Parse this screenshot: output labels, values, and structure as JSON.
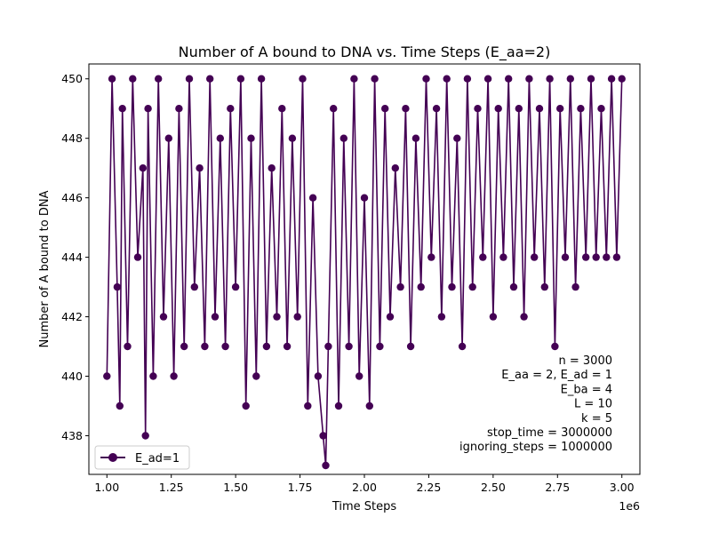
{
  "chart_data": {
    "type": "line",
    "title": "Number of A bound to DNA vs. Time Steps (E_aa=2)",
    "xlabel": "Time Steps",
    "ylabel": "Number of A bound to DNA",
    "x_offset_label": "1e6",
    "xlim": [
      0.93,
      3.07
    ],
    "ylim": [
      436.7,
      450.5
    ],
    "x_ticks": [
      1.0,
      1.25,
      1.5,
      1.75,
      2.0,
      2.25,
      2.5,
      2.75,
      3.0
    ],
    "x_tick_labels": [
      "1.00",
      "1.25",
      "1.50",
      "1.75",
      "2.00",
      "2.25",
      "2.50",
      "2.75",
      "3.00"
    ],
    "y_ticks": [
      438,
      440,
      442,
      444,
      446,
      448,
      450
    ],
    "y_tick_labels": [
      "438",
      "440",
      "442",
      "444",
      "446",
      "448",
      "450"
    ],
    "grid": false,
    "legend_position": "lower-left",
    "color": "#440154",
    "series": [
      {
        "name": "E_ad=1",
        "marker": "circle",
        "x": [
          1.0,
          1.02,
          1.04,
          1.05,
          1.06,
          1.08,
          1.1,
          1.12,
          1.14,
          1.15,
          1.16,
          1.18,
          1.2,
          1.22,
          1.24,
          1.26,
          1.28,
          1.3,
          1.32,
          1.34,
          1.36,
          1.38,
          1.4,
          1.42,
          1.44,
          1.46,
          1.48,
          1.5,
          1.52,
          1.54,
          1.56,
          1.58,
          1.6,
          1.62,
          1.64,
          1.66,
          1.68,
          1.7,
          1.72,
          1.74,
          1.76,
          1.78,
          1.8,
          1.82,
          1.84,
          1.85,
          1.86,
          1.88,
          1.9,
          1.92,
          1.94,
          1.96,
          1.98,
          2.0,
          2.02,
          2.04,
          2.06,
          2.08,
          2.1,
          2.12,
          2.14,
          2.16,
          2.18,
          2.2,
          2.22,
          2.24,
          2.26,
          2.28,
          2.3,
          2.32,
          2.34,
          2.36,
          2.38,
          2.4,
          2.42,
          2.44,
          2.46,
          2.48,
          2.5,
          2.52,
          2.54,
          2.56,
          2.58,
          2.6,
          2.62,
          2.64,
          2.66,
          2.68,
          2.7,
          2.72,
          2.74,
          2.76,
          2.78,
          2.8,
          2.82,
          2.84,
          2.86,
          2.88,
          2.9,
          2.92,
          2.94,
          2.96,
          2.98,
          3.0
        ],
        "y": [
          440,
          450,
          443,
          439,
          449,
          441,
          450,
          444,
          447,
          438,
          449,
          440,
          450,
          442,
          448,
          440,
          449,
          441,
          450,
          443,
          447,
          441,
          450,
          442,
          448,
          441,
          449,
          443,
          450,
          439,
          448,
          440,
          450,
          441,
          447,
          442,
          449,
          441,
          448,
          442,
          450,
          439,
          446,
          440,
          438,
          437,
          441,
          449,
          439,
          448,
          441,
          450,
          440,
          446,
          439,
          450,
          441,
          449,
          442,
          447,
          443,
          449,
          441,
          448,
          443,
          450,
          444,
          449,
          442,
          450,
          443,
          448,
          441,
          450,
          443,
          449,
          444,
          450,
          442,
          449,
          444,
          450,
          443,
          449,
          442,
          450,
          444,
          449,
          443,
          450,
          441,
          449,
          444,
          450,
          443,
          449,
          444,
          450,
          444,
          449,
          444,
          450,
          444,
          450
        ]
      }
    ],
    "annotations": [
      "n = 3000",
      "E_aa = 2, E_ad = 1",
      "E_ba = 4",
      "L = 10",
      "k = 5",
      "stop_time = 3000000",
      "ignoring_steps = 1000000"
    ]
  }
}
